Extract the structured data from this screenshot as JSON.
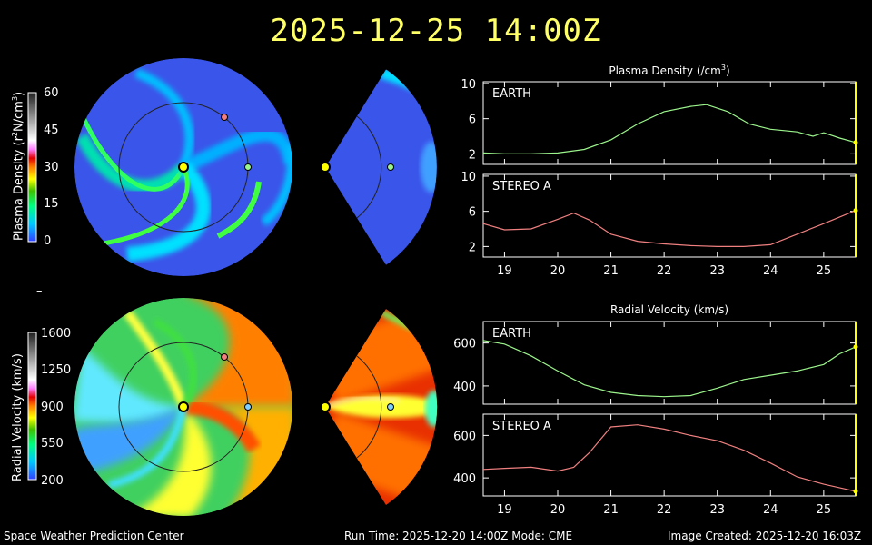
{
  "header": {
    "title": "2025-12-25 14:00Z"
  },
  "colorbars": {
    "density": {
      "label_prefix": "Plasma Density (r",
      "label_sup1": "2",
      "label_mid": "N/cm",
      "label_sup2": "3",
      "label_suffix": ")",
      "ticks": [
        "60",
        "45",
        "30",
        "15",
        "0"
      ]
    },
    "velocity": {
      "label": "Radial Velocity (km/s)",
      "ticks": [
        "1600",
        "1250",
        "900",
        "550",
        "200"
      ]
    }
  },
  "separator": "–",
  "charts": {
    "density_title_prefix": "Plasma Density (/cm",
    "density_title_sup": "3",
    "density_title_suffix": ")",
    "velocity_title": "Radial Velocity (km/s)",
    "x_ticks": [
      "19",
      "20",
      "21",
      "22",
      "23",
      "24",
      "25"
    ]
  },
  "chart_data": [
    {
      "type": "line",
      "title": "Plasma Density (/cm3)",
      "panel": "EARTH",
      "color": "#9cf58c",
      "x": [
        18.6,
        19.0,
        19.5,
        20.0,
        20.5,
        21.0,
        21.5,
        22.0,
        22.5,
        22.8,
        23.2,
        23.6,
        24.0,
        24.5,
        24.8,
        25.0,
        25.3,
        25.6
      ],
      "y": [
        2.1,
        2.0,
        2.0,
        2.1,
        2.5,
        3.6,
        5.4,
        6.8,
        7.4,
        7.6,
        6.8,
        5.4,
        4.8,
        4.5,
        4.0,
        4.4,
        3.8,
        3.3
      ],
      "ylim": [
        0.8,
        10.2
      ],
      "yticks": [
        2,
        6,
        10
      ],
      "xlim": [
        18.6,
        25.6
      ]
    },
    {
      "type": "line",
      "panel": "STEREO A",
      "color": "#f08080",
      "x": [
        18.6,
        19.0,
        19.5,
        20.0,
        20.3,
        20.6,
        21.0,
        21.5,
        22.0,
        22.5,
        23.0,
        23.5,
        24.0,
        24.5,
        25.0,
        25.6
      ],
      "y": [
        4.6,
        3.9,
        4.0,
        5.1,
        5.8,
        5.0,
        3.4,
        2.6,
        2.3,
        2.1,
        2.0,
        2.0,
        2.2,
        3.4,
        4.6,
        6.1
      ],
      "ylim": [
        0.8,
        10.2
      ],
      "yticks": [
        2,
        6,
        10
      ],
      "xlim": [
        18.6,
        25.6
      ]
    },
    {
      "type": "line",
      "title": "Radial Velocity (km/s)",
      "panel": "EARTH",
      "color": "#9cf58c",
      "x": [
        18.6,
        19.0,
        19.5,
        20.0,
        20.5,
        21.0,
        21.5,
        22.0,
        22.5,
        23.0,
        23.5,
        24.0,
        24.5,
        25.0,
        25.3,
        25.6
      ],
      "y": [
        612,
        595,
        540,
        470,
        405,
        370,
        355,
        350,
        355,
        390,
        430,
        450,
        470,
        500,
        550,
        582
      ],
      "ylim": [
        315,
        700
      ],
      "yticks": [
        400,
        600
      ],
      "xlim": [
        18.6,
        25.6
      ]
    },
    {
      "type": "line",
      "panel": "STEREO A",
      "color": "#f08080",
      "x": [
        18.6,
        19.0,
        19.5,
        20.0,
        20.3,
        20.6,
        21.0,
        21.5,
        22.0,
        22.5,
        23.0,
        23.5,
        24.0,
        24.5,
        25.0,
        25.6
      ],
      "y": [
        440,
        445,
        450,
        432,
        450,
        520,
        640,
        650,
        630,
        600,
        575,
        530,
        470,
        405,
        370,
        337
      ],
      "ylim": [
        315,
        700
      ],
      "yticks": [
        400,
        600
      ],
      "xlim": [
        18.6,
        25.6
      ]
    }
  ],
  "footer": {
    "left": "Space Weather Prediction Center",
    "center": "Run Time: 2025-12-20 14:00Z  Mode: CME",
    "right": "Image Created: 2025-12-20 16:03Z"
  }
}
